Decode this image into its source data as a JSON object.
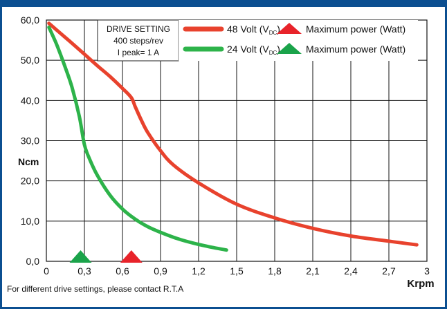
{
  "chart_data": {
    "type": "line",
    "title": "",
    "xlabel": "Krpm",
    "ylabel": "Ncm",
    "xlim": [
      0,
      3.0
    ],
    "ylim": [
      0,
      60
    ],
    "x_ticks": [
      "0",
      "0,3",
      "0,6",
      "0,9",
      "1,2",
      "1,5",
      "1,8",
      "2,1",
      "2,4",
      "2,7",
      "3"
    ],
    "y_ticks": [
      "0,0",
      "10,0",
      "20,0",
      "30,0",
      "40,0",
      "50,0",
      "60,0"
    ],
    "grid": true,
    "series": [
      {
        "name": "48 Volt (VDC)",
        "color": "#e8422d",
        "x": [
          0.02,
          0.1,
          0.2,
          0.3,
          0.4,
          0.5,
          0.6,
          0.67,
          0.7,
          0.75,
          0.8,
          0.9,
          1.0,
          1.2,
          1.5,
          1.8,
          2.1,
          2.4,
          2.7,
          2.92
        ],
        "y": [
          59.2,
          57.0,
          54.3,
          51.5,
          48.7,
          46.0,
          43.0,
          40.7,
          38.5,
          35.0,
          32.0,
          27.5,
          24.0,
          19.5,
          14.2,
          10.8,
          8.2,
          6.3,
          5.0,
          4.1
        ]
      },
      {
        "name": "24 Volt (VDC)",
        "color": "#2db34a",
        "x": [
          0.02,
          0.08,
          0.14,
          0.2,
          0.26,
          0.3,
          0.34,
          0.4,
          0.5,
          0.6,
          0.7,
          0.8,
          0.9,
          1.0,
          1.1,
          1.2,
          1.3,
          1.42
        ],
        "y": [
          58.2,
          54.0,
          49.0,
          43.5,
          36.0,
          29.0,
          25.5,
          21.5,
          16.5,
          13.0,
          10.5,
          8.6,
          7.2,
          6.0,
          5.0,
          4.2,
          3.5,
          2.8
        ]
      }
    ],
    "markers": [
      {
        "series": "48 Volt (VDC)",
        "label": "Maximum power (Watt)",
        "x": 0.67,
        "y": 0,
        "color": "#e8232a"
      },
      {
        "series": "24 Volt (VDC)",
        "label": "Maximum power (Watt)",
        "x": 0.27,
        "y": 0,
        "color": "#1aa34a"
      }
    ],
    "legend": {
      "placement": "top-right",
      "entries": [
        {
          "line_label": "48 Volt (V",
          "subscript": "DC",
          "close": ")",
          "marker_label": "Maximum power (Watt)",
          "line_color": "#e8422d",
          "marker_color": "#e8232a"
        },
        {
          "line_label": "24 Volt (V",
          "subscript": "DC",
          "close": ")",
          "marker_label": "Maximum power (Watt)",
          "line_color": "#2db34a",
          "marker_color": "#1aa34a"
        }
      ]
    },
    "settings_box": {
      "title": "DRIVE SETTING",
      "line1": "400 steps/rev",
      "line2": "I peak= 1 A"
    }
  },
  "footnote": "For different drive settings, please contact R.T.A"
}
